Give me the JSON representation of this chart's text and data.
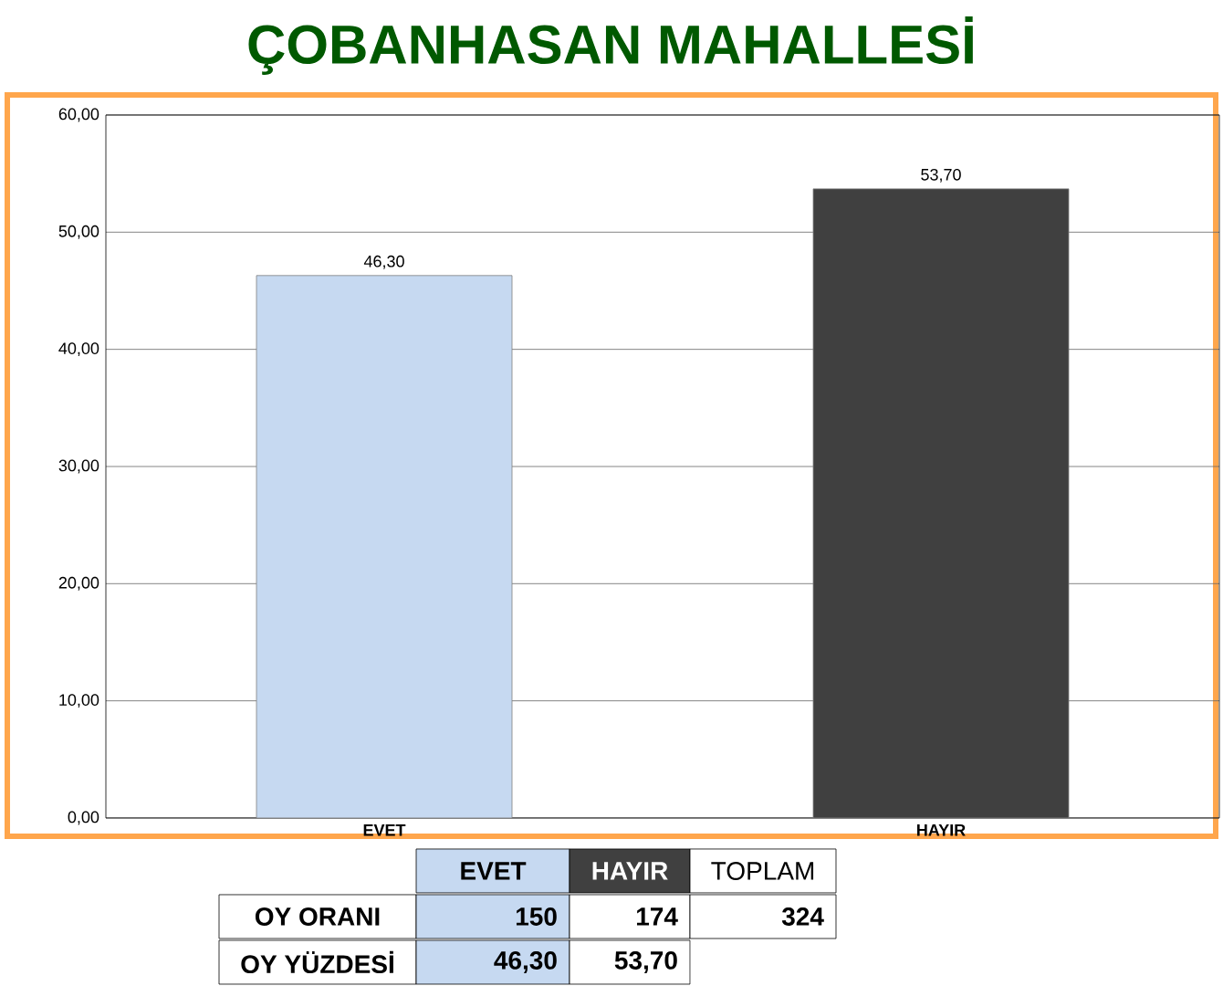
{
  "chart_data": {
    "type": "bar",
    "title": "ÇOBANHASAN MAHALLESİ",
    "categories": [
      "EVET",
      "HAYIR"
    ],
    "values": [
      46.3,
      53.7
    ],
    "colors": [
      "#c6d9f1",
      "#404040"
    ],
    "value_labels": [
      "46,30",
      "53,70"
    ],
    "ylim": [
      0,
      60
    ],
    "yticks": [
      {
        "value": 0,
        "label": "0,00"
      },
      {
        "value": 10,
        "label": "10,00"
      },
      {
        "value": 20,
        "label": "20,00"
      },
      {
        "value": 30,
        "label": "30,00"
      },
      {
        "value": 40,
        "label": "40,00"
      },
      {
        "value": 50,
        "label": "50,00"
      },
      {
        "value": 60,
        "label": "60,00"
      }
    ],
    "grid": "y",
    "annotations": [
      "EVET",
      "HAYIR",
      "TOPLAM",
      "OY ORANI",
      "150",
      "174",
      "324",
      "OY YÜZDESİ",
      "46,30",
      "53,70"
    ]
  }
}
